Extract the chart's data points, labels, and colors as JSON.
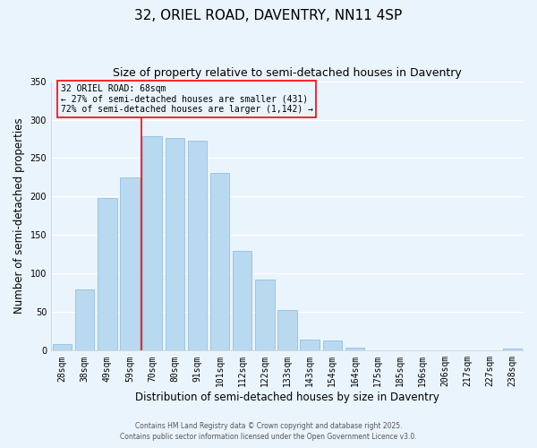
{
  "title": "32, ORIEL ROAD, DAVENTRY, NN11 4SP",
  "subtitle": "Size of property relative to semi-detached houses in Daventry",
  "xlabel": "Distribution of semi-detached houses by size in Daventry",
  "ylabel": "Number of semi-detached properties",
  "categories": [
    "28sqm",
    "38sqm",
    "49sqm",
    "59sqm",
    "70sqm",
    "80sqm",
    "91sqm",
    "101sqm",
    "112sqm",
    "122sqm",
    "133sqm",
    "143sqm",
    "154sqm",
    "164sqm",
    "175sqm",
    "185sqm",
    "196sqm",
    "206sqm",
    "217sqm",
    "227sqm",
    "238sqm"
  ],
  "values": [
    9,
    80,
    198,
    225,
    278,
    276,
    273,
    231,
    130,
    92,
    53,
    14,
    13,
    4,
    0,
    0,
    0,
    0,
    0,
    0,
    3
  ],
  "bar_color": "#b8d9f0",
  "bar_edge_color": "#8ab8d8",
  "reference_line_x": 3.5,
  "reference_line_label": "32 ORIEL ROAD: 68sqm",
  "annotation_line1": "← 27% of semi-detached houses are smaller (431)",
  "annotation_line2": "72% of semi-detached houses are larger (1,142) →",
  "ylim": [
    0,
    350
  ],
  "yticks": [
    0,
    50,
    100,
    150,
    200,
    250,
    300,
    350
  ],
  "footer1": "Contains HM Land Registry data © Crown copyright and database right 2025.",
  "footer2": "Contains public sector information licensed under the Open Government Licence v3.0.",
  "bg_color": "#eaf4fd",
  "grid_color": "#ffffff",
  "title_fontsize": 11,
  "subtitle_fontsize": 9,
  "axis_label_fontsize": 8.5,
  "tick_fontsize": 7,
  "footer_fontsize": 5.5
}
